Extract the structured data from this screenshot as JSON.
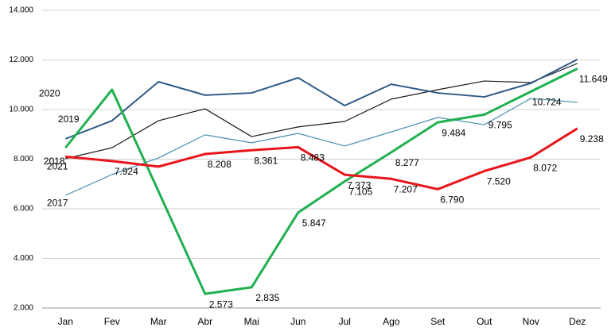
{
  "chart_data": {
    "type": "line",
    "categories": [
      "Jan",
      "Fev",
      "Mar",
      "Abr",
      "Mai",
      "Jun",
      "Jul",
      "Ago",
      "Set",
      "Out",
      "Nov",
      "Dez"
    ],
    "ylim": [
      2000,
      14000
    ],
    "yticks": [
      {
        "value": 2000,
        "label": "2.000"
      },
      {
        "value": 4000,
        "label": "4.000"
      },
      {
        "value": 6000,
        "label": "6.000"
      },
      {
        "value": 8000,
        "label": "8.000"
      },
      {
        "value": 10000,
        "label": "10.000"
      },
      {
        "value": 12000,
        "label": "12.000"
      },
      {
        "value": 14000,
        "label": "14.000"
      }
    ],
    "grid": true,
    "series": [
      {
        "name": "2017",
        "color": "#4a8fb0",
        "width": 1.2,
        "values": [
          6540,
          7380,
          8050,
          8980,
          8660,
          9040,
          8530,
          9100,
          9680,
          9390,
          10450,
          10290
        ]
      },
      {
        "name": "2018",
        "color": "#1a1a1a",
        "width": 1.2,
        "values": [
          8020,
          8460,
          9550,
          10030,
          8910,
          9300,
          9520,
          10420,
          10800,
          11150,
          11090,
          11860
        ]
      },
      {
        "name": "2019",
        "color": "#2e5a87",
        "width": 2,
        "values": [
          8820,
          9550,
          11120,
          10580,
          10670,
          11280,
          10160,
          11020,
          10670,
          10510,
          11060,
          12020
        ]
      },
      {
        "name": "2020",
        "color": "#1fb04f",
        "width": 3,
        "values": [
          8460,
          10800,
          6700,
          2573,
          2835,
          5847,
          7105,
          8277,
          9484,
          9795,
          10724,
          11649
        ],
        "value_labels": [
          null,
          null,
          null,
          "2.573",
          "2.835",
          "5.847",
          "7.105",
          "8.277",
          "9.484",
          "9.795",
          "10.724",
          "11.649"
        ]
      },
      {
        "name": "2021",
        "color": "#e8151b",
        "width": 3,
        "values": [
          8100,
          7924,
          7700,
          8208,
          8361,
          8483,
          7373,
          7207,
          6790,
          7520,
          8072,
          9238
        ],
        "value_labels": [
          null,
          "7.924",
          null,
          "8.208",
          "8.361",
          "8.483",
          "7.373",
          "7.207",
          "6.790",
          "7.520",
          "8.072",
          "9.238"
        ]
      }
    ]
  }
}
